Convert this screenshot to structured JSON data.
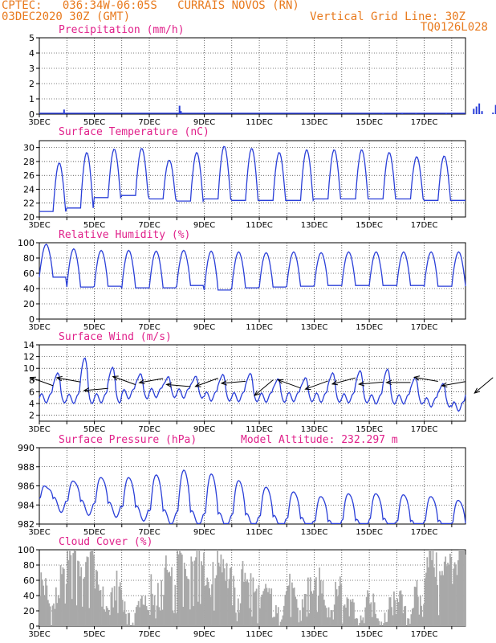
{
  "header": {
    "line1_left": "CPTEC:   036:34W-06:05S   CURRAIS NOVOS (RN)",
    "line2_left": "03DEC2020 30Z (GMT)",
    "line2_right": "Vertical Grid Line: 30Z",
    "line3_right": "TQ0126L028"
  },
  "colors": {
    "header": "#e87a1e",
    "title": "#e0208a",
    "line": "#2a3fd8",
    "cloud": "#a8a8a8",
    "wind_arrow": "#000000"
  },
  "chart_data": [
    {
      "type": "bar",
      "title": "Precipitation (mm/h)",
      "ylim": [
        0,
        5
      ],
      "yticks": [
        0,
        1,
        2,
        3,
        4,
        5
      ],
      "xticks": [
        "3DEC",
        "5DEC",
        "7DEC",
        "9DEC",
        "11DEC",
        "13DEC",
        "15DEC",
        "17DEC"
      ],
      "x_unit": "days since 3DEC 00Z",
      "bars": [
        [
          0.9,
          0.3
        ],
        [
          5.1,
          0.55
        ],
        [
          5.15,
          0.2
        ],
        [
          12.5,
          0.05
        ],
        [
          13.2,
          0.08
        ],
        [
          13.7,
          0.05
        ],
        [
          14.8,
          0.06
        ],
        [
          15.0,
          0.07
        ],
        [
          15.8,
          0.35
        ],
        [
          15.9,
          0.5
        ],
        [
          16.0,
          0.7
        ],
        [
          16.1,
          0.2
        ],
        [
          16.5,
          0.1
        ],
        [
          16.6,
          0.6
        ],
        [
          16.7,
          0.15
        ],
        [
          17.85,
          0.5
        ]
      ]
    },
    {
      "type": "line",
      "title": "Surface Temperature (nC)",
      "ylim": [
        20,
        31
      ],
      "yticks": [
        20,
        22,
        24,
        26,
        28,
        30
      ],
      "xticks": [
        "3DEC",
        "5DEC",
        "7DEC",
        "9DEC",
        "11DEC",
        "13DEC",
        "15DEC",
        "17DEC"
      ],
      "daily_max": [
        27.8,
        29.3,
        29.8,
        29.9,
        28.2,
        29.3,
        30.2,
        29.9,
        29.3,
        29.7,
        29.7,
        29.7,
        29.3,
        28.7,
        28.8,
        29.8,
        29.8,
        29.3
      ],
      "daily_min": [
        20.8,
        21.3,
        22.8,
        23.1,
        22.6,
        22.3,
        22.6,
        22.4,
        22.4,
        22.4,
        22.6,
        22.6,
        22.6,
        22.6,
        22.4,
        22.4,
        22.6,
        22.8
      ]
    },
    {
      "type": "line",
      "title": "Relative Humidity (%)",
      "ylim": [
        0,
        100
      ],
      "yticks": [
        0,
        20,
        40,
        60,
        80,
        100
      ],
      "xticks": [
        "3DEC",
        "5DEC",
        "7DEC",
        "9DEC",
        "11DEC",
        "13DEC",
        "15DEC",
        "17DEC"
      ],
      "daily_max": [
        98,
        92,
        90,
        90,
        89,
        90,
        89,
        88,
        87,
        88,
        87,
        88,
        88,
        88,
        88,
        88,
        90,
        92
      ],
      "daily_min": [
        55,
        42,
        43,
        41,
        41,
        44,
        38,
        41,
        42,
        43,
        44,
        44,
        44,
        44,
        43,
        43,
        43,
        46
      ]
    },
    {
      "type": "line",
      "title": "Surface Wind (m/s)",
      "ylim": [
        1,
        14
      ],
      "yticks": [
        2,
        4,
        6,
        8,
        10,
        12,
        14
      ],
      "xticks": [
        "3DEC",
        "5DEC",
        "7DEC",
        "9DEC",
        "11DEC",
        "13DEC",
        "15DEC",
        "17DEC"
      ],
      "daily_max": [
        9.5,
        12.2,
        10.5,
        9.3,
        8.7,
        8.8,
        9.2,
        9.4,
        8.4,
        8.6,
        9.5,
        9.9,
        10.2,
        8.7,
        7.6,
        7.7,
        7.3,
        7.2
      ],
      "daily_min": [
        4.9,
        4.8,
        4.9,
        5.6,
        5.8,
        5.7,
        5.2,
        5.1,
        5.0,
        5.1,
        5.0,
        4.9,
        4.7,
        4.7,
        4.2,
        3.5,
        2.6,
        2.7
      ],
      "arrow_dirs_deg": [
        -70,
        -80,
        -95,
        -70,
        -100,
        -85,
        -110,
        -95,
        -130,
        -70,
        -110,
        -105,
        -95,
        -90,
        -80,
        -100,
        -130,
        -140
      ]
    },
    {
      "type": "line",
      "title": "Surface Pressure (hPa)",
      "annotation": "Model Altitude: 232.297 m",
      "ylim": [
        982,
        990
      ],
      "yticks": [
        982,
        984,
        986,
        988,
        990
      ],
      "xticks": [
        "3DEC",
        "5DEC",
        "7DEC",
        "9DEC",
        "11DEC",
        "13DEC",
        "15DEC",
        "17DEC"
      ],
      "daily_max": [
        986.6,
        987.2,
        987.6,
        987.6,
        987.9,
        988.4,
        988.0,
        987.3,
        986.6,
        986.1,
        985.6,
        985.9,
        985.9,
        985.8,
        985.6,
        985.2,
        984.9,
        984.6
      ],
      "daily_min": [
        984.0,
        983.7,
        983.5,
        983.1,
        982.7,
        982.6,
        982.4,
        982.3,
        982.1,
        981.9,
        981.6,
        981.7,
        981.8,
        981.6,
        981.6,
        981.4,
        981.3,
        981.4
      ]
    },
    {
      "type": "area",
      "title": "Cloud Cover (%)",
      "ylim": [
        0,
        100
      ],
      "yticks": [
        0,
        20,
        40,
        60,
        80,
        100
      ],
      "xticks": [
        "3DEC",
        "5DEC",
        "7DEC",
        "9DEC",
        "11DEC",
        "13DEC",
        "15DEC",
        "17DEC"
      ],
      "daily_mean": [
        40,
        88,
        38,
        20,
        52,
        88,
        75,
        55,
        30,
        38,
        40,
        28,
        18,
        28,
        80,
        80,
        55,
        95
      ],
      "daily_spread": [
        20,
        12,
        15,
        10,
        20,
        10,
        18,
        20,
        12,
        12,
        15,
        12,
        10,
        12,
        18,
        15,
        15,
        5
      ]
    }
  ]
}
